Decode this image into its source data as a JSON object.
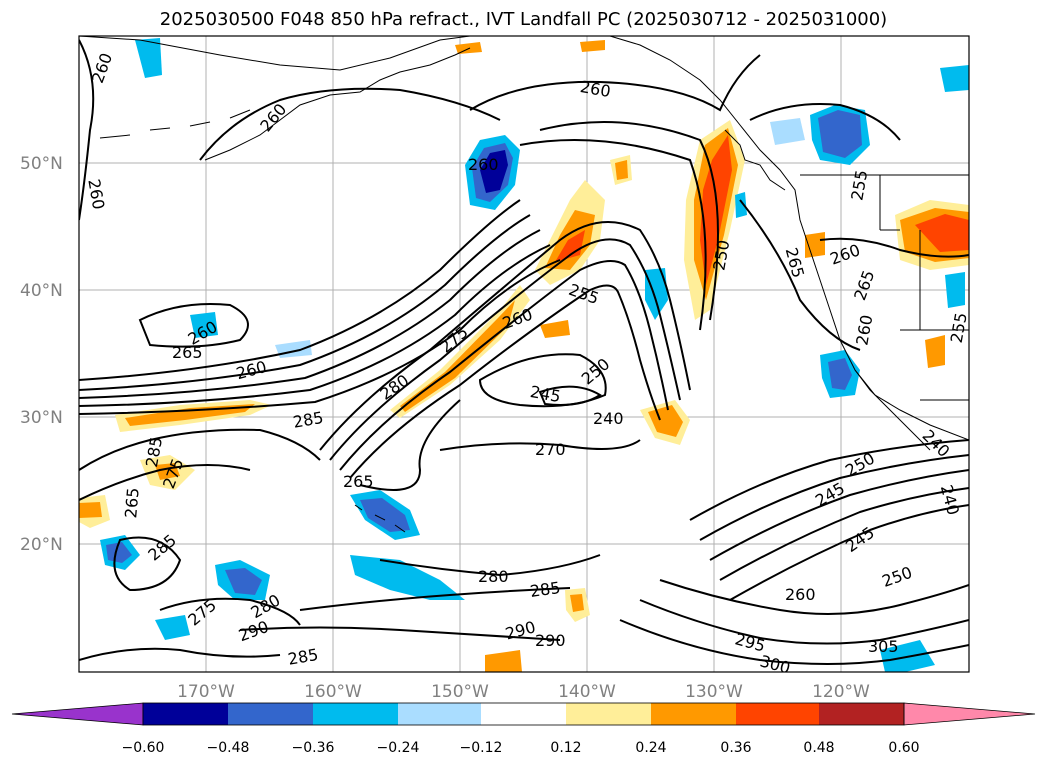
{
  "title": "2025030500 F048 850 hPa refract., IVT Landfall PC (2025030712 - 2025031000)",
  "lat_labels": [
    "50°N",
    "40°N",
    "30°N",
    "20°N"
  ],
  "lon_labels": [
    "170°W",
    "160°W",
    "150°W",
    "140°W",
    "130°W",
    "120°W"
  ],
  "contour_labels": [
    "260",
    "260",
    "260",
    "260",
    "265",
    "260",
    "260",
    "285",
    "285",
    "275",
    "265",
    "285",
    "275",
    "280",
    "290",
    "285",
    "280",
    "280",
    "285",
    "290",
    "290",
    "275",
    "260",
    "255",
    "260",
    "250",
    "245",
    "240",
    "270",
    "265",
    "250",
    "260",
    "265",
    "260",
    "255",
    "255",
    "265",
    "250",
    "245",
    "245",
    "295",
    "300",
    "305",
    "250",
    "260",
    "240",
    "240"
  ],
  "colorbar": {
    "ticks": [
      "−0.60",
      "−0.48",
      "−0.36",
      "−0.24",
      "−0.12",
      "0.12",
      "0.24",
      "0.36",
      "0.48",
      "0.60"
    ],
    "colors": [
      "#9933cc",
      "#000099",
      "#3366cc",
      "#00bbee",
      "#aaddff",
      "#ffffff",
      "#ffee99",
      "#ff9900",
      "#ff4400",
      "#b22222",
      "#ff88aa"
    ]
  },
  "shading_colors": {
    "neg_dark": "#000099",
    "neg_mid": "#3366cc",
    "neg_cyan": "#00bbee",
    "neg_light": "#aaddff",
    "pos_light": "#ffee99",
    "pos_orange": "#ff9900",
    "pos_red": "#ff4400"
  }
}
